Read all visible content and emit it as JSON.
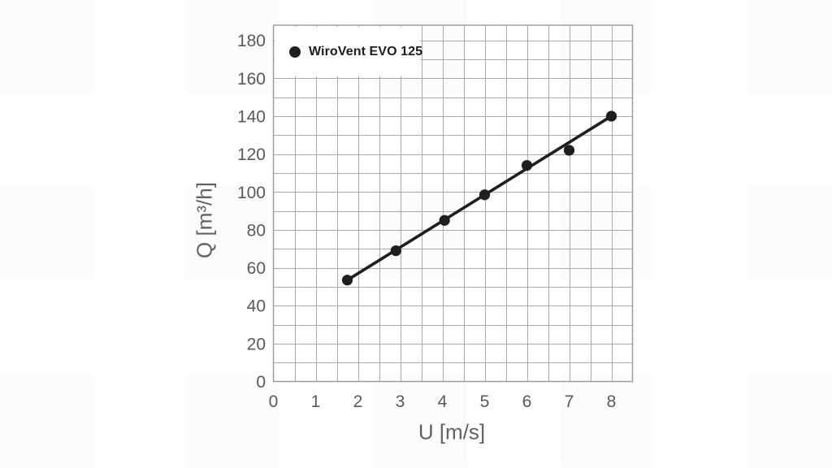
{
  "page": {
    "background": "#ffffff"
  },
  "chart_data": {
    "type": "scatter",
    "title": "",
    "xlabel": "U [m/s]",
    "ylabel": "Q [m³/h]",
    "xlim": [
      0,
      8.5
    ],
    "ylim": [
      0,
      188
    ],
    "x_ticks": [
      0,
      1,
      2,
      3,
      4,
      5,
      6,
      7,
      8
    ],
    "y_ticks": [
      0,
      20,
      40,
      60,
      80,
      100,
      120,
      140,
      160,
      180
    ],
    "x_minor_step": 0.5,
    "y_minor_step": 10,
    "grid": true,
    "legend": {
      "position": "top-left",
      "label": "WiroVent EVO 125"
    },
    "series": [
      {
        "name": "WiroVent EVO 125",
        "marker": "circle",
        "color": "#1f1f1f",
        "points": [
          {
            "u": 1.75,
            "q": 53.5
          },
          {
            "u": 2.9,
            "q": 69
          },
          {
            "u": 4.05,
            "q": 85
          },
          {
            "u": 5.0,
            "q": 98.5
          },
          {
            "u": 6.0,
            "q": 114
          },
          {
            "u": 7.0,
            "q": 122
          },
          {
            "u": 8.0,
            "q": 140
          }
        ],
        "trendline": {
          "from": {
            "u": 1.75,
            "q": 53.5
          },
          "to": {
            "u": 8.0,
            "q": 140
          }
        }
      }
    ],
    "colors": {
      "grid": "#a9a9a9",
      "frame": "#999999",
      "tick_label": "#58595b",
      "axis_label": "#5f6368",
      "series": "#1f1f1f",
      "legend_text": "#1e1c1d"
    }
  }
}
